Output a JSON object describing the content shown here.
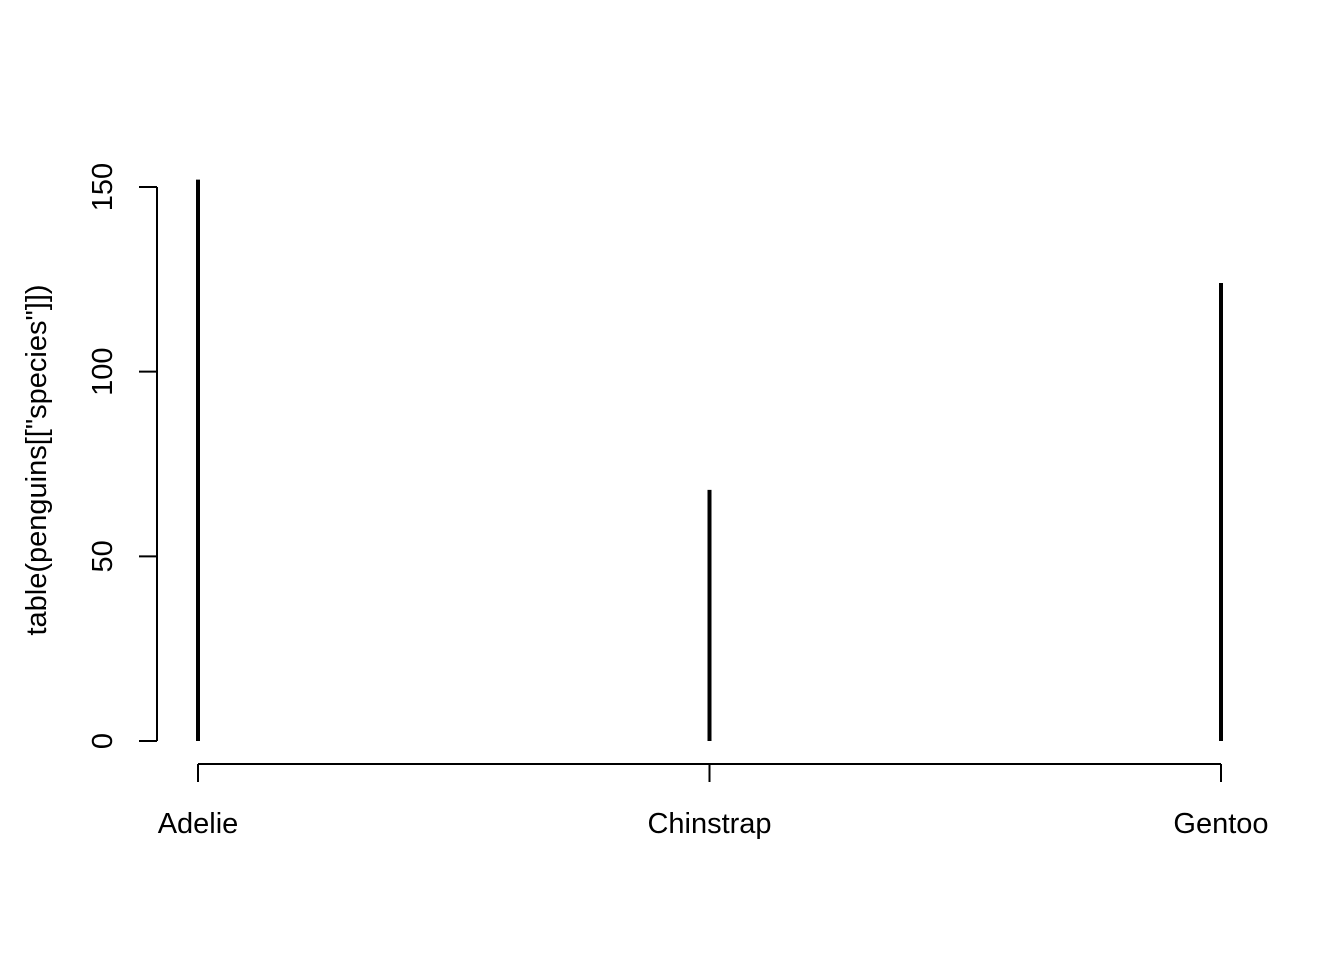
{
  "chart_data": {
    "type": "bar",
    "categories": [
      "Adelie",
      "Chinstrap",
      "Gentoo"
    ],
    "values": [
      152,
      68,
      124
    ],
    "title": "",
    "xlabel": "",
    "ylabel": "table(penguins[[\"species\"]])",
    "ylim": [
      0,
      150
    ],
    "yticks": [
      0,
      50,
      100,
      150
    ],
    "ytick_labels": [
      "0",
      "50",
      "100",
      "150"
    ],
    "grid": false,
    "style": "needle",
    "color": "#000000"
  }
}
